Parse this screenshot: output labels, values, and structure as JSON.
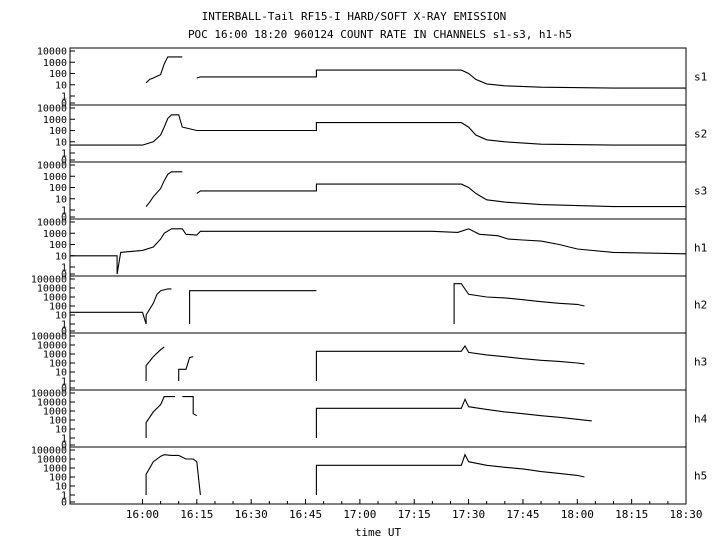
{
  "chart_data": {
    "type": "line",
    "title": "INTERBALL-Tail RF15-I HARD/SOFT X-RAY EMISSION",
    "subtitle": "POC 16:00 18:20 960124  COUNT RATE IN CHANNELS s1-s3, h1-h5",
    "xlabel": "time UT",
    "x_ticks": [
      "16:00",
      "16:15",
      "16:30",
      "16:45",
      "17:00",
      "17:15",
      "17:30",
      "17:45",
      "18:00",
      "18:15",
      "18:30"
    ],
    "x_range_minutes": [
      -20,
      150
    ],
    "log_y": true,
    "grid": false,
    "panels": [
      {
        "name": "s1",
        "ylim": [
          0,
          10000
        ],
        "ticks": [
          "10000",
          "1000",
          "100",
          "10",
          "1",
          "0"
        ],
        "points": [
          [
            -20,
            null
          ],
          [
            1,
            15
          ],
          [
            2,
            30
          ],
          [
            3,
            40
          ],
          [
            5,
            80
          ],
          [
            6,
            700
          ],
          [
            7,
            3000
          ],
          [
            8,
            3000
          ],
          [
            11,
            3000
          ],
          [
            11,
            null
          ],
          [
            15,
            40
          ],
          [
            16,
            50
          ],
          [
            20,
            50
          ],
          [
            30,
            50
          ],
          [
            43,
            50
          ],
          [
            48,
            50
          ],
          [
            48,
            200
          ],
          [
            60,
            200
          ],
          [
            80,
            200
          ],
          [
            88,
            200
          ],
          [
            90,
            100
          ],
          [
            92,
            30
          ],
          [
            95,
            12
          ],
          [
            100,
            8
          ],
          [
            110,
            6
          ],
          [
            130,
            5
          ],
          [
            150,
            5
          ]
        ]
      },
      {
        "name": "s2",
        "ylim": [
          0,
          10000
        ],
        "ticks": [
          "10000",
          "1000",
          "100",
          "10",
          "1",
          "0"
        ],
        "points": [
          [
            -20,
            5
          ],
          [
            -10,
            5
          ],
          [
            0,
            5
          ],
          [
            3,
            10
          ],
          [
            5,
            40
          ],
          [
            6,
            200
          ],
          [
            7,
            1200
          ],
          [
            8,
            2500
          ],
          [
            10,
            2500
          ],
          [
            11,
            200
          ],
          [
            15,
            100
          ],
          [
            16,
            100
          ],
          [
            30,
            100
          ],
          [
            43,
            100
          ],
          [
            48,
            100
          ],
          [
            48,
            500
          ],
          [
            60,
            500
          ],
          [
            80,
            500
          ],
          [
            88,
            500
          ],
          [
            90,
            200
          ],
          [
            92,
            40
          ],
          [
            95,
            15
          ],
          [
            100,
            10
          ],
          [
            110,
            6
          ],
          [
            130,
            5
          ],
          [
            150,
            5
          ]
        ]
      },
      {
        "name": "s3",
        "ylim": [
          0,
          10000
        ],
        "ticks": [
          "10000",
          "1000",
          "100",
          "10",
          "1",
          "0"
        ],
        "points": [
          [
            -20,
            null
          ],
          [
            1,
            2
          ],
          [
            2,
            5
          ],
          [
            3,
            15
          ],
          [
            5,
            80
          ],
          [
            6,
            400
          ],
          [
            7,
            1500
          ],
          [
            8,
            2500
          ],
          [
            11,
            2500
          ],
          [
            11,
            null
          ],
          [
            15,
            30
          ],
          [
            16,
            50
          ],
          [
            30,
            50
          ],
          [
            43,
            50
          ],
          [
            48,
            50
          ],
          [
            48,
            200
          ],
          [
            60,
            200
          ],
          [
            80,
            200
          ],
          [
            88,
            200
          ],
          [
            90,
            100
          ],
          [
            92,
            30
          ],
          [
            95,
            8
          ],
          [
            100,
            5
          ],
          [
            110,
            3
          ],
          [
            130,
            2
          ],
          [
            150,
            2
          ]
        ]
      },
      {
        "name": "h1",
        "ylim": [
          0,
          10000
        ],
        "ticks": [
          "10000",
          "1000",
          "100",
          "10",
          "1",
          "0"
        ],
        "points": [
          [
            -20,
            10
          ],
          [
            -10,
            10
          ],
          [
            -7,
            10
          ],
          [
            -7,
            0
          ],
          [
            -6,
            20
          ],
          [
            0,
            30
          ],
          [
            3,
            60
          ],
          [
            5,
            300
          ],
          [
            6,
            1000
          ],
          [
            8,
            2500
          ],
          [
            11,
            2500
          ],
          [
            12,
            800
          ],
          [
            15,
            700
          ],
          [
            16,
            1500
          ],
          [
            30,
            1500
          ],
          [
            60,
            1500
          ],
          [
            80,
            1500
          ],
          [
            87,
            1200
          ],
          [
            90,
            2500
          ],
          [
            93,
            800
          ],
          [
            98,
            600
          ],
          [
            101,
            300
          ],
          [
            105,
            250
          ],
          [
            110,
            200
          ],
          [
            115,
            100
          ],
          [
            120,
            40
          ],
          [
            130,
            20
          ],
          [
            150,
            15
          ]
        ]
      },
      {
        "name": "h2",
        "ylim": [
          0,
          100000
        ],
        "ticks": [
          "100000",
          "10000",
          "1000",
          "100",
          "10",
          "1",
          "0"
        ],
        "points": [
          [
            -20,
            20
          ],
          [
            -10,
            20
          ],
          [
            0,
            20
          ],
          [
            1,
            1
          ],
          [
            1,
            10
          ],
          [
            3,
            200
          ],
          [
            4,
            2000
          ],
          [
            5,
            5000
          ],
          [
            7,
            8000
          ],
          [
            8,
            8000
          ],
          [
            8,
            null
          ],
          [
            13,
            1
          ],
          [
            13,
            5000
          ],
          [
            20,
            5000
          ],
          [
            30,
            5000
          ],
          [
            43,
            5000
          ],
          [
            48,
            5000
          ],
          [
            48,
            null
          ],
          [
            86,
            1
          ],
          [
            86,
            30000
          ],
          [
            87,
            30000
          ],
          [
            88,
            30000
          ],
          [
            90,
            2000
          ],
          [
            95,
            1000
          ],
          [
            100,
            800
          ],
          [
            105,
            500
          ],
          [
            110,
            300
          ],
          [
            115,
            200
          ],
          [
            120,
            150
          ],
          [
            122,
            100
          ],
          [
            122,
            null
          ],
          [
            150,
            null
          ]
        ]
      },
      {
        "name": "h3",
        "ylim": [
          0,
          100000
        ],
        "ticks": [
          "100000",
          "10000",
          "1000",
          "100",
          "10",
          "1",
          "0"
        ],
        "points": [
          [
            -20,
            null
          ],
          [
            1,
            1
          ],
          [
            1,
            50
          ],
          [
            3,
            500
          ],
          [
            5,
            3000
          ],
          [
            6,
            6000
          ],
          [
            7,
            null
          ],
          [
            10,
            1
          ],
          [
            10,
            20
          ],
          [
            12,
            20
          ],
          [
            13,
            400
          ],
          [
            14,
            500
          ],
          [
            14,
            null
          ],
          [
            48,
            1
          ],
          [
            48,
            2000
          ],
          [
            60,
            2000
          ],
          [
            80,
            2000
          ],
          [
            88,
            2000
          ],
          [
            89,
            8000
          ],
          [
            90,
            1500
          ],
          [
            95,
            800
          ],
          [
            100,
            500
          ],
          [
            105,
            300
          ],
          [
            110,
            200
          ],
          [
            115,
            150
          ],
          [
            120,
            100
          ],
          [
            122,
            80
          ],
          [
            122,
            null
          ],
          [
            150,
            null
          ]
        ]
      },
      {
        "name": "h4",
        "ylim": [
          0,
          100000
        ],
        "ticks": [
          "100000",
          "10000",
          "1000",
          "100",
          "10",
          "1",
          "0"
        ],
        "points": [
          [
            -20,
            null
          ],
          [
            1,
            1
          ],
          [
            1,
            50
          ],
          [
            3,
            800
          ],
          [
            5,
            5000
          ],
          [
            6,
            40000
          ],
          [
            9,
            40000
          ],
          [
            9,
            null
          ],
          [
            11,
            40000
          ],
          [
            14,
            40000
          ],
          [
            14,
            500
          ],
          [
            15,
            300
          ],
          [
            15,
            null
          ],
          [
            48,
            1
          ],
          [
            48,
            2000
          ],
          [
            60,
            2000
          ],
          [
            80,
            2000
          ],
          [
            88,
            2000
          ],
          [
            89,
            20000
          ],
          [
            90,
            3000
          ],
          [
            95,
            1500
          ],
          [
            100,
            800
          ],
          [
            105,
            500
          ],
          [
            110,
            300
          ],
          [
            115,
            200
          ],
          [
            120,
            120
          ],
          [
            124,
            80
          ],
          [
            124,
            null
          ],
          [
            150,
            null
          ]
        ]
      },
      {
        "name": "h5",
        "ylim": [
          0,
          100000
        ],
        "ticks": [
          "100000",
          "10000",
          "1000",
          "100",
          "10",
          "1",
          "0"
        ],
        "points": [
          [
            -20,
            null
          ],
          [
            1,
            1
          ],
          [
            1,
            200
          ],
          [
            3,
            5000
          ],
          [
            5,
            20000
          ],
          [
            6,
            30000
          ],
          [
            8,
            25000
          ],
          [
            10,
            25000
          ],
          [
            12,
            10000
          ],
          [
            14,
            10000
          ],
          [
            15,
            5000
          ],
          [
            16,
            1
          ],
          [
            16,
            null
          ],
          [
            48,
            1
          ],
          [
            48,
            2000
          ],
          [
            60,
            2000
          ],
          [
            80,
            2000
          ],
          [
            88,
            2000
          ],
          [
            89,
            30000
          ],
          [
            90,
            5000
          ],
          [
            95,
            2000
          ],
          [
            100,
            1200
          ],
          [
            105,
            800
          ],
          [
            110,
            400
          ],
          [
            115,
            250
          ],
          [
            120,
            150
          ],
          [
            122,
            100
          ],
          [
            122,
            null
          ],
          [
            150,
            null
          ]
        ]
      }
    ]
  }
}
